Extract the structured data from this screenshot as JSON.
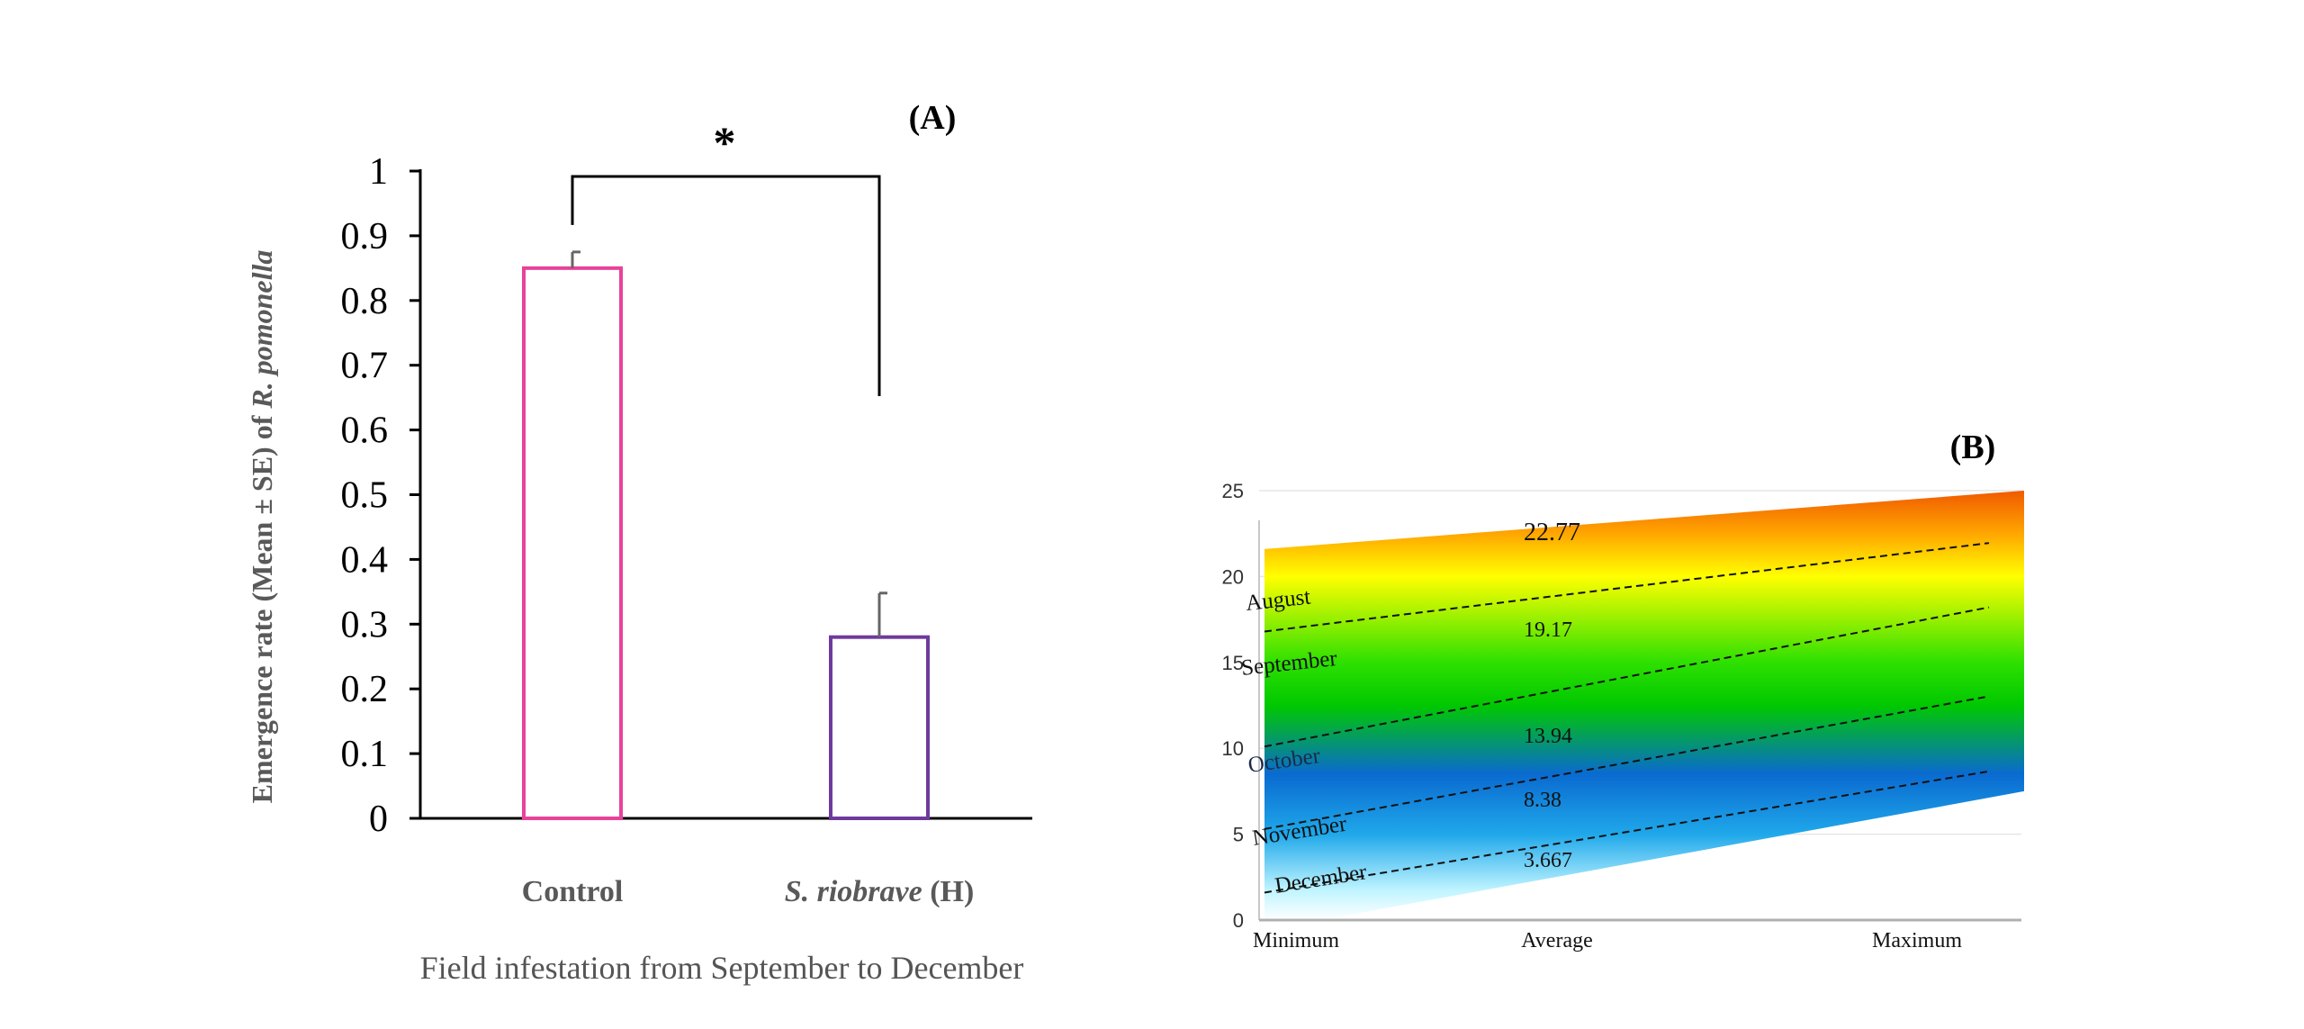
{
  "chart_data": [
    {
      "type": "bar",
      "panel_label": "(A)",
      "categories": [
        "Control",
        "S. riobrave (H)"
      ],
      "category_parts": [
        [
          {
            "text": "Control",
            "italic": false
          }
        ],
        [
          {
            "text": "S. riobrave",
            "italic": true
          },
          {
            "text": " (H)",
            "italic": false
          }
        ]
      ],
      "values": [
        0.85,
        0.28
      ],
      "errors": [
        0.025,
        0.068
      ],
      "bar_colors": [
        "#e8429a",
        "#6e3a9e"
      ],
      "ylim": [
        0,
        1
      ],
      "yticks": [
        0,
        0.1,
        0.2,
        0.3,
        0.4,
        0.5,
        0.6,
        0.7,
        0.8,
        0.9,
        1
      ],
      "ytick_labels": [
        "0",
        "0.1",
        "0.2",
        "0.3",
        "0.4",
        "0.5",
        "0.6",
        "0.7",
        "0.8",
        "0.9",
        "1"
      ],
      "ylabel": "Emergence rate (Mean ± SE) of",
      "ylabel_italic": "R. pomonella",
      "xlabel": "Field infestation from September to December",
      "significance": {
        "text": "*",
        "between": [
          0,
          1
        ]
      },
      "grid": false
    },
    {
      "type": "area",
      "panel_label": "(B)",
      "categories": [
        "Minimum",
        "Average",
        "Maximum"
      ],
      "ylim": [
        0,
        25
      ],
      "yticks": [
        0,
        5,
        10,
        15,
        20,
        25
      ],
      "ytick_labels": [
        "0",
        "5",
        "10",
        "15",
        "20",
        "25"
      ],
      "top_boundary": [
        21.6,
        25
      ],
      "boundary_lines": [
        {
          "label": "August",
          "values": [
            16.8,
            22.2
          ]
        },
        {
          "label": "September",
          "values": [
            10.1,
            18.6
          ]
        },
        {
          "label": "October",
          "values": [
            5.3,
            13.4
          ]
        },
        {
          "label": "November",
          "values": [
            1.6,
            9.0
          ]
        }
      ],
      "bottom_label": "December",
      "average_labels": [
        {
          "text": "22.77",
          "value": 22.77
        },
        {
          "text": "19.17",
          "value": 19.17
        },
        {
          "text": "13.94",
          "value": 13.94
        },
        {
          "text": "8.38",
          "value": 8.38
        },
        {
          "text": "3.667",
          "value": 3.667
        }
      ],
      "gradient_colors": [
        "#f05a00",
        "#ffa600",
        "#ffff00",
        "#2ee000",
        "#00c800",
        "#0a6ad0",
        "#1fa8ea",
        "#bff4ff",
        "#ffffff"
      ],
      "grid": true
    }
  ]
}
